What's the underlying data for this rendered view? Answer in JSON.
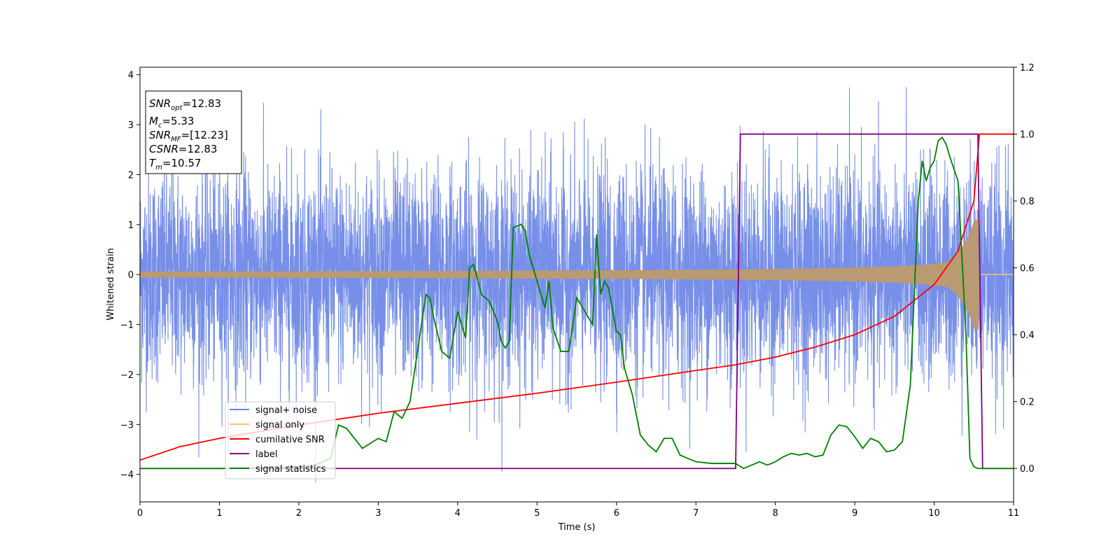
{
  "chart_data": {
    "type": "line",
    "xlabel": "Time (s)",
    "ylabel": "Whitened strain",
    "xlim": [
      0,
      11
    ],
    "ylim": [
      -4.55,
      4.15
    ],
    "y2lim": [
      -0.1,
      1.2
    ],
    "xticks": [
      "0",
      "1",
      "2",
      "3",
      "4",
      "5",
      "6",
      "7",
      "8",
      "9",
      "10",
      "11"
    ],
    "yticks": [
      "−4",
      "−3",
      "−2",
      "−1",
      "0",
      "1",
      "2",
      "3",
      "4"
    ],
    "y2ticks": [
      "0.0",
      "0.2",
      "0.4",
      "0.6",
      "0.8",
      "1.0",
      "1.2"
    ],
    "grid": false,
    "legend_position": "lower-left",
    "info_box": {
      "snr_opt": {
        "sym": "SNR",
        "sub": "opt",
        "val": "=12.83"
      },
      "mc": {
        "sym": "M",
        "sub": "c",
        "val": "=5.33"
      },
      "snr_mf": {
        "sym": "SNR",
        "sub": "MF",
        "val": "=[12.23]"
      },
      "csnr": {
        "sym": "CSNR",
        "sub": "",
        "val": "=12.83"
      },
      "tm": {
        "sym": "T",
        "sub": "m",
        "val": "=10.57"
      }
    },
    "colors": {
      "noise": "#6b86e6",
      "signal": "#f5c46e",
      "signal_overlap": "#b99a73",
      "csnr": "#ff0000",
      "label": "#800080",
      "stats": "#008000"
    },
    "series": [
      {
        "name": "signal+ noise",
        "axis": "left",
        "description_values": {
          "noise_sigma": 1.0,
          "duration_s": 11.0
        }
      },
      {
        "name": "signal only",
        "axis": "left",
        "chirp_amplitude_start": 0.06,
        "chirp_amplitude_end": 1.1,
        "merger_time": 10.57
      },
      {
        "name": "cumilative SNR",
        "axis": "right",
        "x": [
          0,
          0.5,
          1,
          1.5,
          2,
          3,
          4,
          5,
          6,
          7,
          7.5,
          8,
          8.5,
          9,
          9.5,
          10,
          10.3,
          10.5,
          10.57,
          11
        ],
        "y": [
          0.025,
          0.065,
          0.09,
          0.11,
          0.13,
          0.165,
          0.195,
          0.225,
          0.258,
          0.293,
          0.31,
          0.333,
          0.363,
          0.4,
          0.455,
          0.55,
          0.65,
          0.8,
          1.0,
          1.0
        ]
      },
      {
        "name": "label",
        "axis": "right",
        "x": [
          0,
          7.5,
          7.56,
          10.55,
          10.61,
          11
        ],
        "y": [
          0,
          0,
          1,
          1,
          0,
          0
        ]
      },
      {
        "name": "signal statistics",
        "axis": "right",
        "x": [
          0,
          1,
          2,
          2.2,
          2.4,
          2.5,
          2.6,
          2.7,
          2.8,
          2.9,
          3.0,
          3.1,
          3.2,
          3.3,
          3.4,
          3.5,
          3.6,
          3.65,
          3.7,
          3.8,
          3.9,
          4.0,
          4.1,
          4.15,
          4.2,
          4.3,
          4.4,
          4.5,
          4.55,
          4.6,
          4.65,
          4.7,
          4.8,
          4.85,
          4.9,
          5.0,
          5.1,
          5.15,
          5.2,
          5.3,
          5.4,
          5.5,
          5.6,
          5.7,
          5.75,
          5.8,
          5.85,
          5.9,
          6.0,
          6.05,
          6.1,
          6.2,
          6.3,
          6.4,
          6.5,
          6.6,
          6.7,
          6.8,
          6.9,
          7.0,
          7.2,
          7.5,
          7.6,
          7.8,
          7.9,
          8.0,
          8.1,
          8.2,
          8.3,
          8.4,
          8.5,
          8.6,
          8.7,
          8.8,
          8.9,
          9.0,
          9.1,
          9.2,
          9.3,
          9.4,
          9.5,
          9.6,
          9.7,
          9.8,
          9.85,
          9.9,
          9.95,
          10.0,
          10.05,
          10.1,
          10.15,
          10.2,
          10.3,
          10.4,
          10.45,
          10.5,
          10.55,
          10.6,
          11.0
        ],
        "y": [
          0.0,
          0.0,
          0.005,
          0.01,
          0.03,
          0.13,
          0.12,
          0.09,
          0.06,
          0.075,
          0.09,
          0.08,
          0.17,
          0.15,
          0.2,
          0.36,
          0.52,
          0.51,
          0.45,
          0.35,
          0.33,
          0.47,
          0.39,
          0.6,
          0.61,
          0.52,
          0.5,
          0.44,
          0.38,
          0.36,
          0.38,
          0.72,
          0.73,
          0.71,
          0.64,
          0.56,
          0.48,
          0.56,
          0.42,
          0.35,
          0.35,
          0.51,
          0.47,
          0.43,
          0.7,
          0.52,
          0.56,
          0.54,
          0.41,
          0.4,
          0.3,
          0.22,
          0.1,
          0.07,
          0.05,
          0.09,
          0.09,
          0.04,
          0.03,
          0.02,
          0.015,
          0.015,
          0.0,
          0.02,
          0.01,
          0.02,
          0.035,
          0.045,
          0.04,
          0.045,
          0.035,
          0.04,
          0.1,
          0.13,
          0.125,
          0.095,
          0.06,
          0.09,
          0.08,
          0.05,
          0.055,
          0.08,
          0.25,
          0.8,
          0.92,
          0.86,
          0.9,
          0.92,
          0.98,
          0.99,
          0.97,
          0.93,
          0.86,
          0.4,
          0.03,
          0.005,
          0.0,
          0.0,
          0.0
        ]
      }
    ]
  }
}
